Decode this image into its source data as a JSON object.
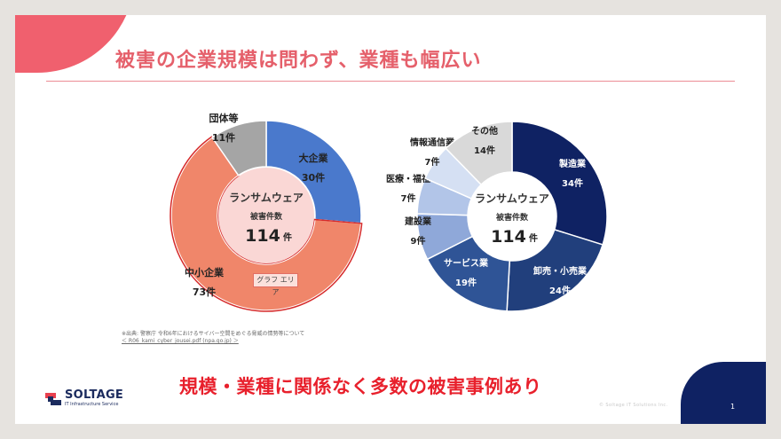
{
  "title": "被害の企業規模は問わず、業種も幅広い",
  "conclusion": "規模・業種に関係なく多数の被害事例あり",
  "source": {
    "line1": "※出典: 警察庁 令和6年におけるサイバー空間をめぐる脅威の情勢等について",
    "link": "＜ R06_kami_cyber_jousei.pdf (npa.go.jp) ＞"
  },
  "logo": {
    "name": "SOLTAGE",
    "tagline": "IT Infrastructure Service"
  },
  "copyright": "© Soltage IT Solutions Inc.",
  "page_number": "1",
  "chart_tooltip": "グラフ エリア",
  "colors": {
    "accent_pink": "#f0606e",
    "title": "#e5606b",
    "conclusion": "#e8202c",
    "navy": "#0f2263"
  },
  "chart_data": [
    {
      "type": "donut",
      "title": "ランサムウェア",
      "subtitle": "被害件数",
      "total_value": "114",
      "total_unit": "件",
      "categories": [
        "大企業",
        "中小企業",
        "団体等"
      ],
      "values": [
        30,
        73,
        11
      ],
      "value_labels": [
        "30件",
        "73件",
        "11件"
      ],
      "selected": "中小企業",
      "colors": [
        "#4a79cc",
        "#f0866a",
        "#a5a5a5"
      ]
    },
    {
      "type": "donut",
      "title": "ランサムウェア",
      "subtitle": "被害件数",
      "total_value": "114",
      "total_unit": "件",
      "categories": [
        "製造業",
        "卸売・小売業",
        "サービス業",
        "建設業",
        "医療・福祉",
        "情報通信業",
        "その他"
      ],
      "values": [
        34,
        24,
        19,
        9,
        7,
        7,
        14
      ],
      "value_labels": [
        "34件",
        "24件",
        "19件",
        "9件",
        "7件",
        "7件",
        "14件"
      ],
      "colors": [
        "#0f2263",
        "#213f7c",
        "#2f5496",
        "#8fa8d9",
        "#b2c5e8",
        "#d5e0f3",
        "#d9d9d9"
      ]
    }
  ]
}
